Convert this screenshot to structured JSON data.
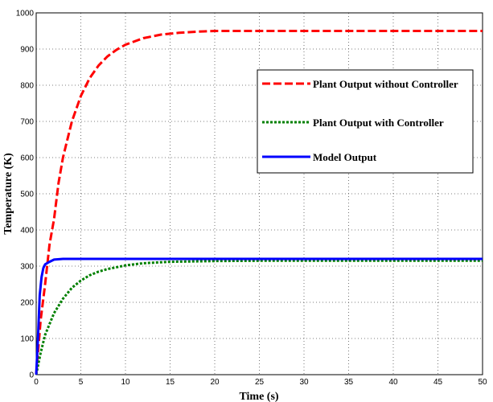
{
  "chart_data": {
    "type": "line",
    "title": "",
    "xlabel": "Time (s)",
    "ylabel": "Temperature (K)",
    "xlim": [
      0,
      50
    ],
    "ylim": [
      0,
      1000
    ],
    "xticks": [
      0,
      5,
      10,
      15,
      20,
      25,
      30,
      35,
      40,
      45,
      50
    ],
    "yticks": [
      0,
      100,
      200,
      300,
      400,
      500,
      600,
      700,
      800,
      900,
      1000
    ],
    "grid": true,
    "legend_position": "right",
    "series": [
      {
        "name": "Plant Output without Controller",
        "color": "#ff0000",
        "style": "dashed",
        "points": [
          [
            0,
            0
          ],
          [
            0.5,
            150
          ],
          [
            1,
            250
          ],
          [
            1.5,
            360
          ],
          [
            2,
            430
          ],
          [
            2.5,
            530
          ],
          [
            3,
            600
          ],
          [
            3.5,
            650
          ],
          [
            4,
            700
          ],
          [
            5,
            770
          ],
          [
            6,
            820
          ],
          [
            7,
            855
          ],
          [
            8,
            880
          ],
          [
            9,
            898
          ],
          [
            10,
            912
          ],
          [
            12,
            930
          ],
          [
            14,
            940
          ],
          [
            16,
            945
          ],
          [
            18,
            948
          ],
          [
            20,
            950
          ],
          [
            25,
            950
          ],
          [
            30,
            950
          ],
          [
            35,
            950
          ],
          [
            40,
            950
          ],
          [
            45,
            950
          ],
          [
            50,
            950
          ]
        ]
      },
      {
        "name": "Plant Output with Controller",
        "color": "#008000",
        "style": "dotted",
        "points": [
          [
            0,
            0
          ],
          [
            0.5,
            60
          ],
          [
            1,
            110
          ],
          [
            1.5,
            140
          ],
          [
            2,
            170
          ],
          [
            3,
            210
          ],
          [
            4,
            240
          ],
          [
            5,
            260
          ],
          [
            6,
            275
          ],
          [
            7,
            285
          ],
          [
            8,
            292
          ],
          [
            9,
            297
          ],
          [
            10,
            302
          ],
          [
            12,
            308
          ],
          [
            15,
            312
          ],
          [
            20,
            314
          ],
          [
            25,
            315
          ],
          [
            30,
            315
          ],
          [
            35,
            315
          ],
          [
            40,
            315
          ],
          [
            45,
            315
          ],
          [
            50,
            315
          ]
        ]
      },
      {
        "name": "Model Output",
        "color": "#0000ff",
        "style": "solid",
        "points": [
          [
            0,
            0
          ],
          [
            0.2,
            100
          ],
          [
            0.4,
            220
          ],
          [
            0.6,
            270
          ],
          [
            0.8,
            295
          ],
          [
            1,
            305
          ],
          [
            1.5,
            312
          ],
          [
            2,
            318
          ],
          [
            3,
            320
          ],
          [
            5,
            320
          ],
          [
            10,
            320
          ],
          [
            20,
            320
          ],
          [
            30,
            320
          ],
          [
            40,
            320
          ],
          [
            50,
            320
          ]
        ]
      }
    ]
  }
}
